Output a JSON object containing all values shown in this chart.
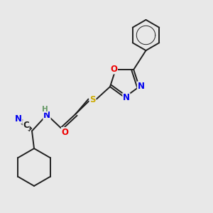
{
  "bg_color": "#e8e8e8",
  "bond_color": "#202020",
  "bond_width": 1.4,
  "atom_colors": {
    "C": "#202020",
    "N": "#0000ee",
    "O": "#ee0000",
    "S": "#ccaa00",
    "H": "#669966"
  },
  "xlim": [
    0,
    10
  ],
  "ylim": [
    0,
    10
  ]
}
